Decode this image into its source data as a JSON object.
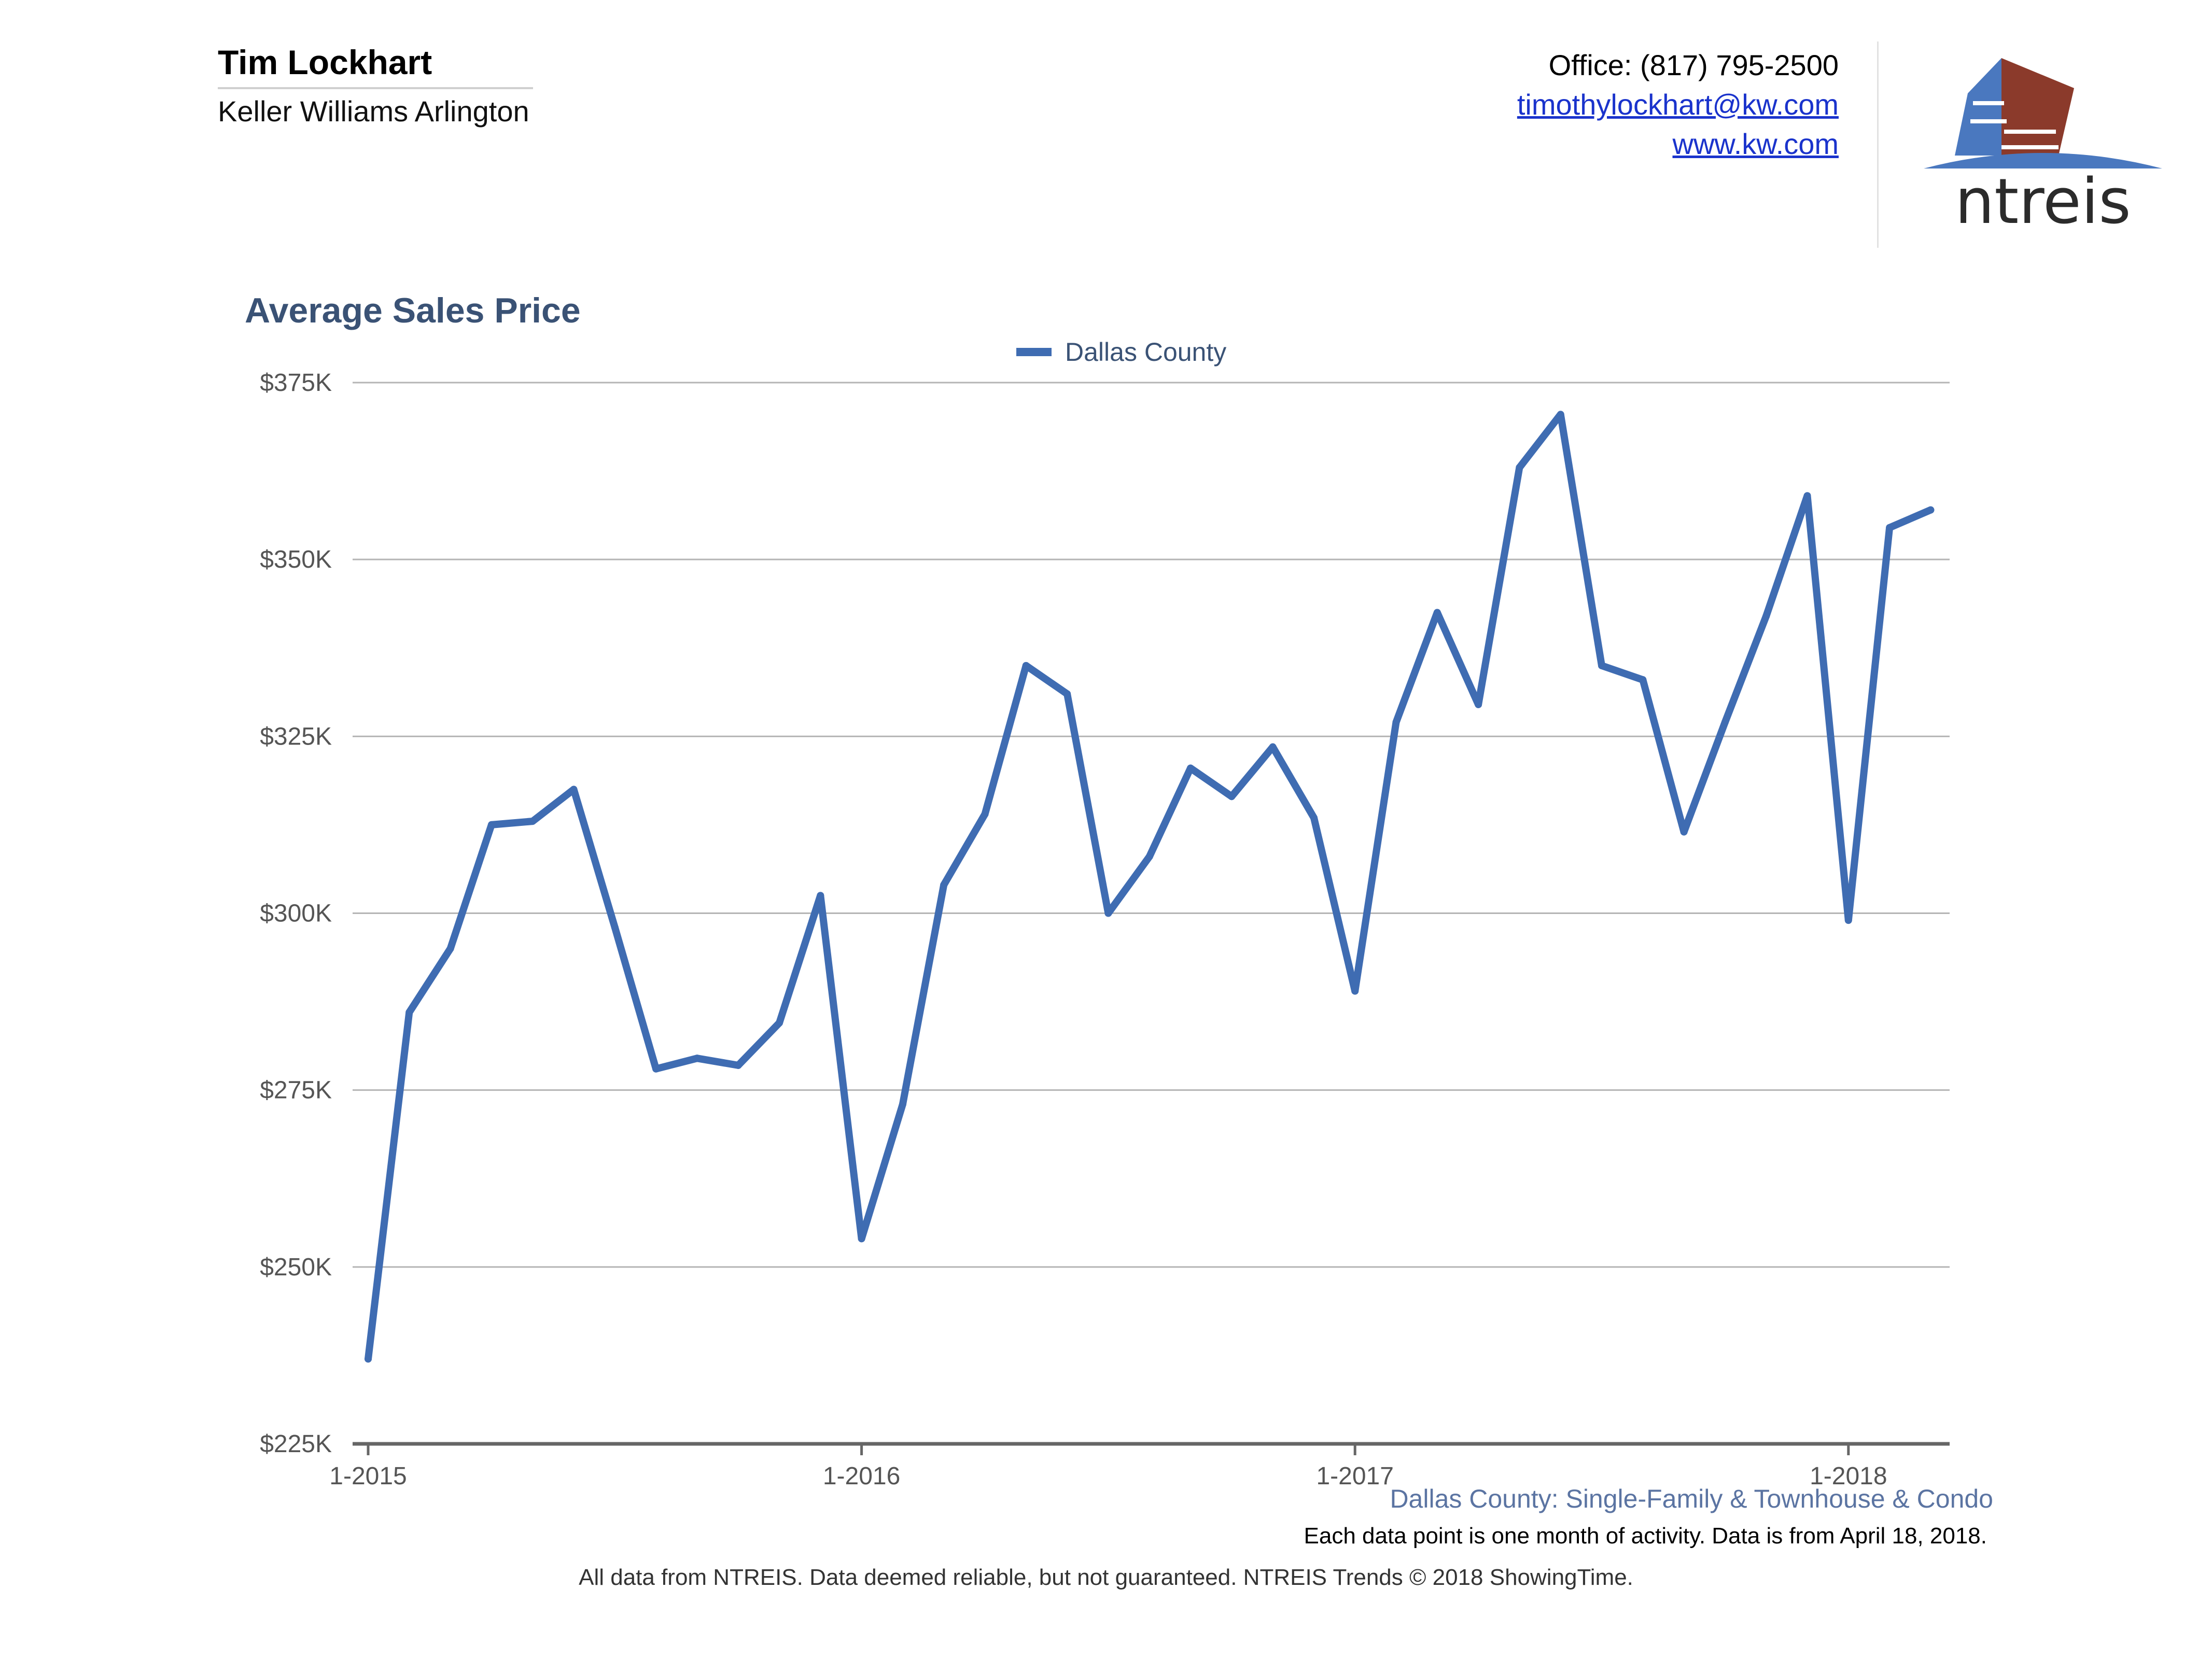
{
  "header": {
    "agent_name": "Tim Lockhart",
    "company": "Keller Williams Arlington",
    "office": "Office: (817) 795-2500",
    "email": "timothylockhart@kw.com",
    "website": "www.kw.com",
    "logo_text": "ntreis"
  },
  "chart_data": {
    "type": "line",
    "title": "Average Sales Price",
    "xlabel": "",
    "ylabel": "",
    "legend_position": "top-center",
    "grid": true,
    "ylim": [
      225000,
      375000
    ],
    "y_ticks": [
      225000,
      250000,
      275000,
      300000,
      325000,
      350000,
      375000
    ],
    "y_tick_labels": [
      "$225K",
      "$250K",
      "$275K",
      "$300K",
      "$325K",
      "$350K",
      "$375K"
    ],
    "x_tick_labels": [
      "1-2015",
      "1-2016",
      "1-2017",
      "1-2018"
    ],
    "x_ticks": [
      "2015-01",
      "2016-01",
      "2017-01",
      "2018-01"
    ],
    "x": [
      "2015-01",
      "2015-02",
      "2015-03",
      "2015-04",
      "2015-05",
      "2015-06",
      "2015-07",
      "2015-08",
      "2015-09",
      "2015-10",
      "2015-11",
      "2015-12",
      "2016-01",
      "2016-02",
      "2016-03",
      "2016-04",
      "2016-05",
      "2016-06",
      "2016-07",
      "2016-08",
      "2016-09",
      "2016-10",
      "2016-11",
      "2016-12",
      "2017-01",
      "2017-02",
      "2017-03",
      "2017-04",
      "2017-05",
      "2017-06",
      "2017-07",
      "2017-08",
      "2017-09",
      "2017-10",
      "2017-11",
      "2017-12",
      "2018-01",
      "2018-02",
      "2018-03"
    ],
    "series": [
      {
        "name": "Dallas County",
        "color": "#3f6cb2",
        "values": [
          237000,
          286000,
          295000,
          312500,
          313000,
          317500,
          298000,
          278000,
          279500,
          278500,
          284500,
          302500,
          254000,
          273000,
          304000,
          314000,
          335000,
          331000,
          300000,
          308000,
          320500,
          316500,
          323500,
          313500,
          289000,
          327000,
          342500,
          329500,
          363000,
          370500,
          335000,
          333000,
          311500,
          327000,
          342000,
          359000,
          299000,
          354500,
          357000
        ]
      }
    ]
  },
  "footer": {
    "series_description": "Dallas County: Single-Family & Townhouse & Condo",
    "data_note": "Each data point is one month of activity. Data is from April 18, 2018.",
    "disclaimer": "All data from NTREIS. Data deemed reliable, but not guaranteed. NTREIS Trends © 2018 ShowingTime."
  }
}
